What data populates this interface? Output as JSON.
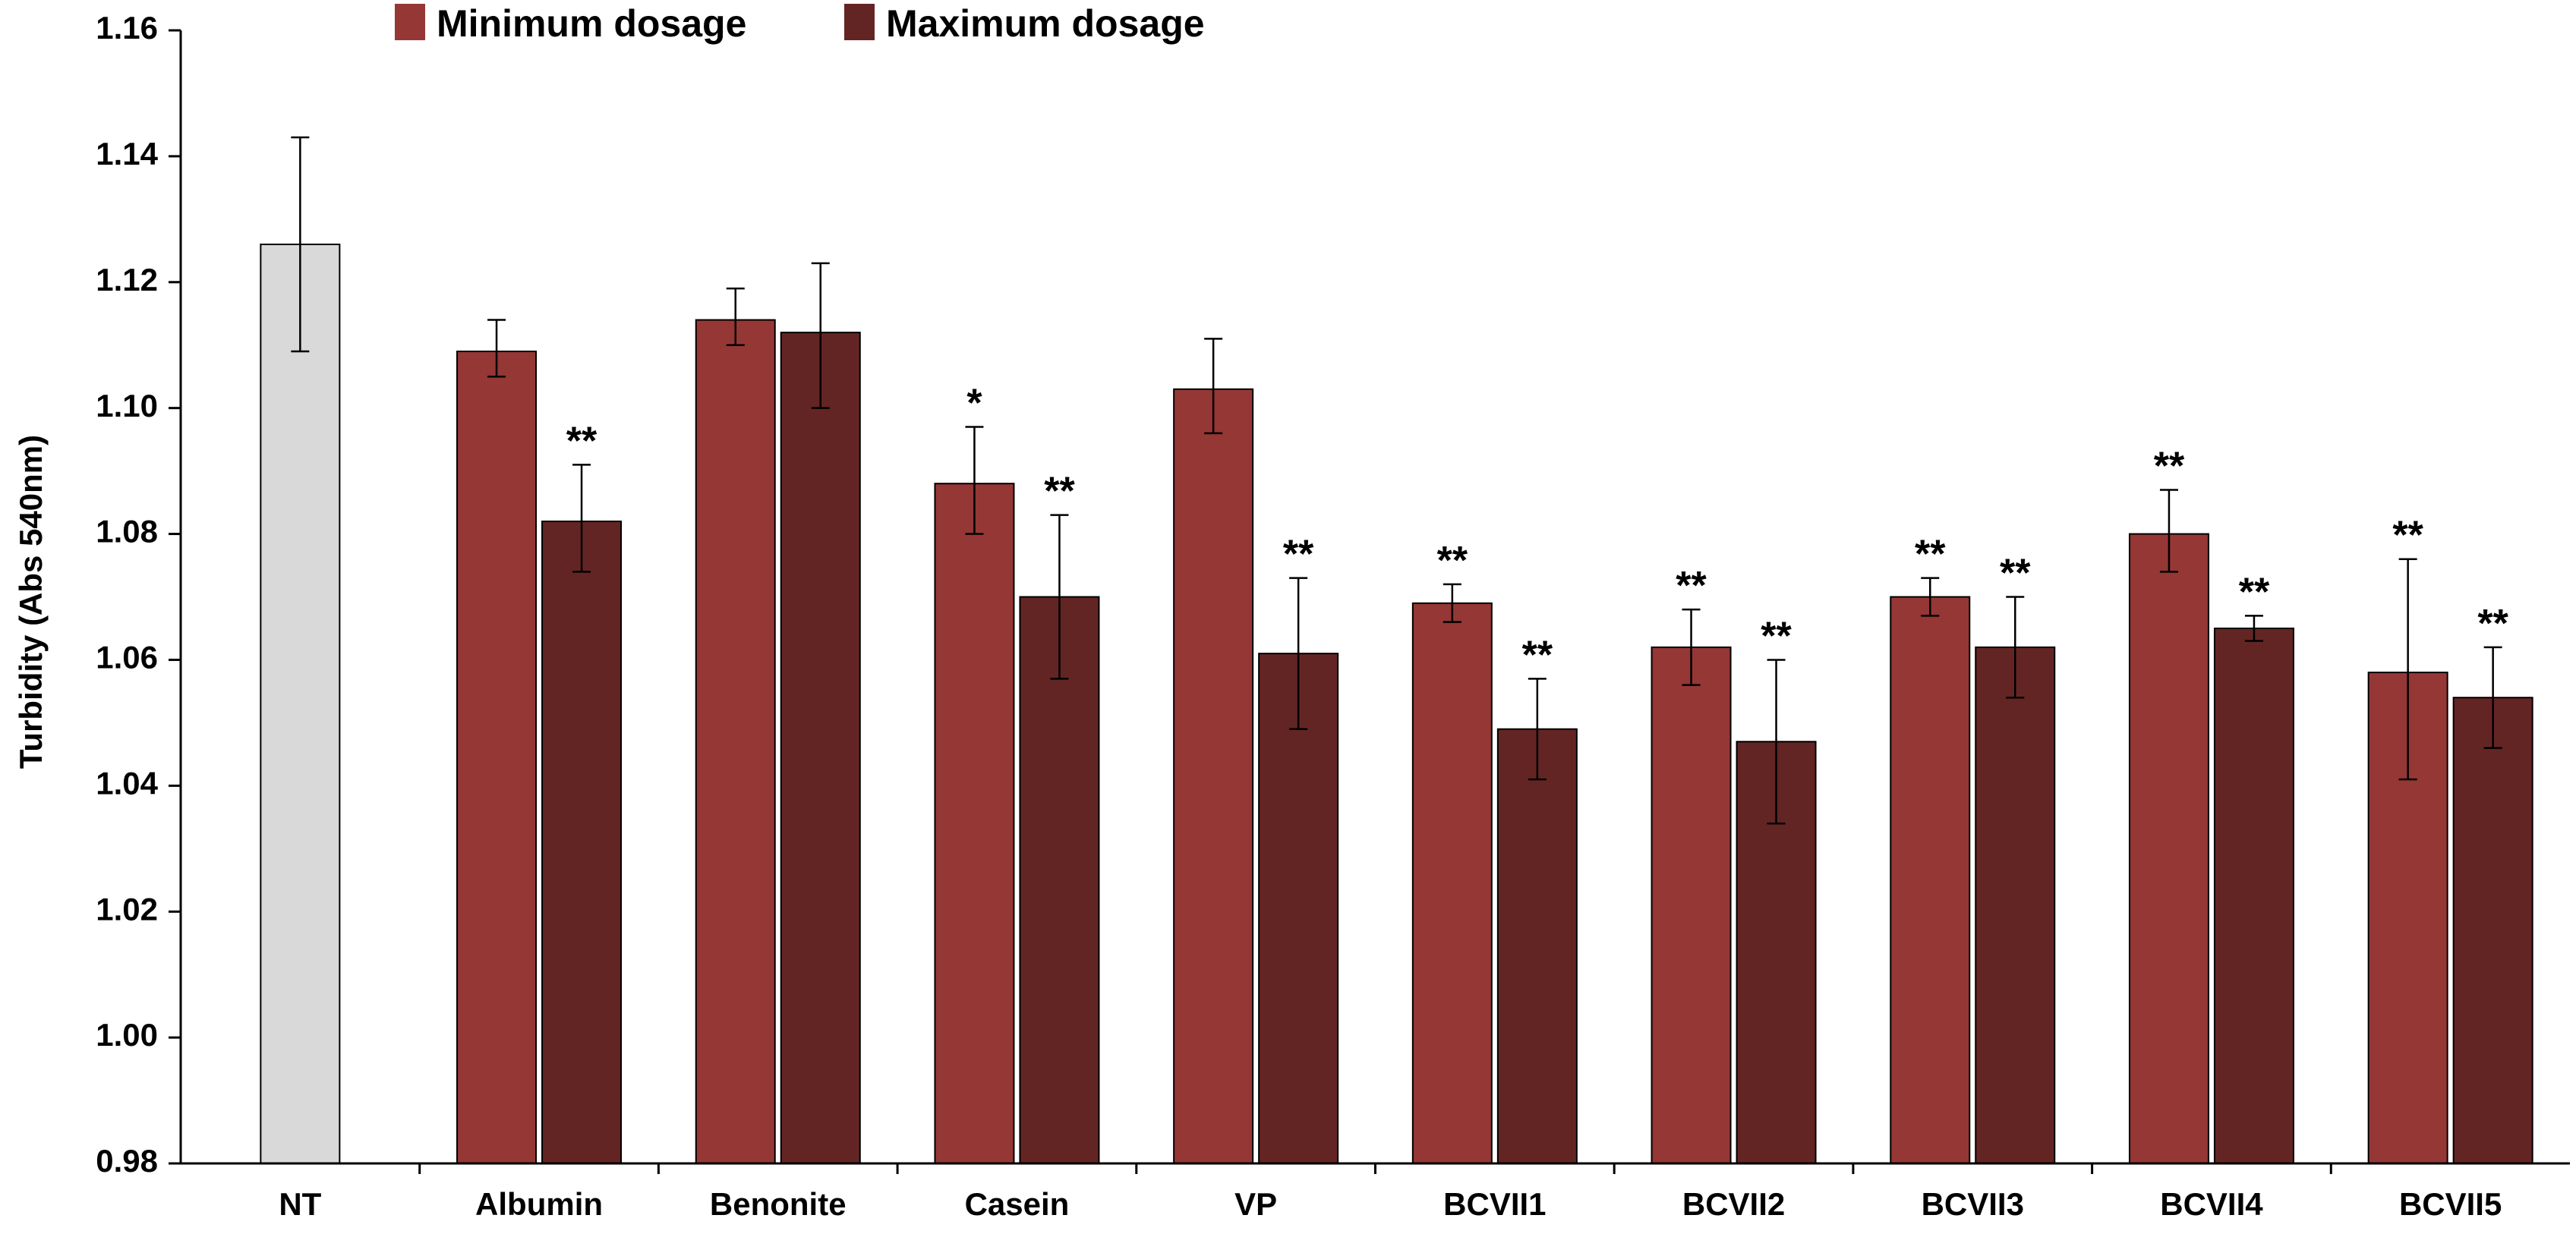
{
  "chart_data": {
    "type": "bar",
    "title": "",
    "xlabel": "",
    "ylabel": "Turbidity (Abs 540nm)",
    "ylim": [
      0.98,
      1.16
    ],
    "yticks": [
      "0.98",
      "1.00",
      "1.02",
      "1.04",
      "1.06",
      "1.08",
      "1.10",
      "1.12",
      "1.14",
      "1.16"
    ],
    "legend_position": "top-center",
    "control": {
      "category": "NT",
      "value": 1.126,
      "err_upper": 1.143,
      "err_lower": 1.109,
      "color": "#d9d9d9"
    },
    "categories": [
      "Albumin",
      "Benonite",
      "Casein",
      "VP",
      "BCVII1",
      "BCVII2",
      "BCVII3",
      "BCVII4",
      "BCVII5"
    ],
    "series": [
      {
        "name": "Minimum dosage",
        "color": "#953735",
        "values": [
          1.109,
          1.114,
          1.088,
          1.103,
          1.069,
          1.062,
          1.07,
          1.08,
          1.058
        ],
        "err_upper": [
          1.114,
          1.119,
          1.097,
          1.111,
          1.072,
          1.068,
          1.073,
          1.087,
          1.076
        ],
        "err_lower": [
          1.105,
          1.11,
          1.08,
          1.096,
          1.066,
          1.056,
          1.067,
          1.074,
          1.041
        ],
        "significance": [
          "",
          "",
          "*",
          "",
          "**",
          "**",
          "**",
          "**",
          "**"
        ]
      },
      {
        "name": "Maximum dosage",
        "color": "#632523",
        "values": [
          1.082,
          1.112,
          1.07,
          1.061,
          1.049,
          1.047,
          1.062,
          1.065,
          1.054
        ],
        "err_upper": [
          1.091,
          1.123,
          1.083,
          1.073,
          1.057,
          1.06,
          1.07,
          1.067,
          1.062
        ],
        "err_lower": [
          1.074,
          1.1,
          1.057,
          1.049,
          1.041,
          1.034,
          1.054,
          1.063,
          1.046
        ],
        "significance": [
          "**",
          "",
          "**",
          "**",
          "**",
          "**",
          "**",
          "**",
          "**"
        ]
      }
    ]
  }
}
